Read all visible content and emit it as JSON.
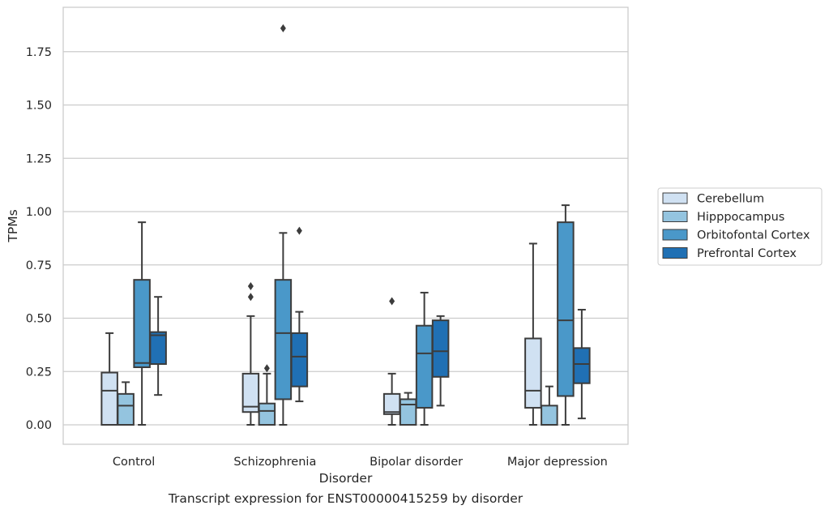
{
  "caption": "Transcript expression for ENST00000415259 by disorder",
  "chart_data": {
    "type": "box",
    "xlabel": "Disorder",
    "ylabel": "TPMs",
    "ylim": [
      -0.09,
      1.97
    ],
    "yticks": [
      0.0,
      0.25,
      0.5,
      0.75,
      1.0,
      1.25,
      1.5,
      1.75
    ],
    "ytick_labels": [
      "0.00",
      "0.25",
      "0.50",
      "0.75",
      "1.00",
      "1.25",
      "1.50",
      "1.75"
    ],
    "grid": "horizontal",
    "legend_position": "right",
    "categories": [
      "Control",
      "Schizophrenia",
      "Bipolar disorder",
      "Major depression"
    ],
    "series": [
      {
        "name": "Cerebellum",
        "color": "#d0e1f2",
        "boxes": [
          {
            "whisker_low": 0.0,
            "q1": 0.0,
            "median": 0.16,
            "q3": 0.245,
            "whisker_high": 0.43,
            "outliers": []
          },
          {
            "whisker_low": 0.0,
            "q1": 0.06,
            "median": 0.085,
            "q3": 0.24,
            "whisker_high": 0.51,
            "outliers": [
              0.6,
              0.65
            ]
          },
          {
            "whisker_low": 0.0,
            "q1": 0.05,
            "median": 0.06,
            "q3": 0.145,
            "whisker_high": 0.24,
            "outliers": [
              0.58
            ]
          },
          {
            "whisker_low": 0.0,
            "q1": 0.08,
            "median": 0.16,
            "q3": 0.405,
            "whisker_high": 0.85,
            "outliers": []
          }
        ]
      },
      {
        "name": "Hipppocampus",
        "color": "#94c4df",
        "boxes": [
          {
            "whisker_low": 0.0,
            "q1": 0.0,
            "median": 0.09,
            "q3": 0.145,
            "whisker_high": 0.2,
            "outliers": []
          },
          {
            "whisker_low": 0.0,
            "q1": 0.0,
            "median": 0.065,
            "q3": 0.1,
            "whisker_high": 0.24,
            "outliers": [
              0.265
            ]
          },
          {
            "whisker_low": 0.0,
            "q1": 0.0,
            "median": 0.095,
            "q3": 0.12,
            "whisker_high": 0.15,
            "outliers": []
          },
          {
            "whisker_low": 0.0,
            "q1": 0.0,
            "median": 0.0,
            "q3": 0.09,
            "whisker_high": 0.18,
            "outliers": []
          }
        ]
      },
      {
        "name": "Orbitofontal Cortex",
        "color": "#4a98c9",
        "boxes": [
          {
            "whisker_low": 0.0,
            "q1": 0.27,
            "median": 0.29,
            "q3": 0.68,
            "whisker_high": 0.95,
            "outliers": []
          },
          {
            "whisker_low": 0.0,
            "q1": 0.12,
            "median": 0.43,
            "q3": 0.68,
            "whisker_high": 0.9,
            "outliers": [
              1.86
            ]
          },
          {
            "whisker_low": 0.0,
            "q1": 0.08,
            "median": 0.335,
            "q3": 0.465,
            "whisker_high": 0.62,
            "outliers": []
          },
          {
            "whisker_low": 0.0,
            "q1": 0.135,
            "median": 0.49,
            "q3": 0.95,
            "whisker_high": 1.03,
            "outliers": []
          }
        ]
      },
      {
        "name": "Prefrontal Cortex",
        "color": "#2070b4",
        "boxes": [
          {
            "whisker_low": 0.14,
            "q1": 0.285,
            "median": 0.42,
            "q3": 0.435,
            "whisker_high": 0.6,
            "outliers": []
          },
          {
            "whisker_low": 0.11,
            "q1": 0.18,
            "median": 0.32,
            "q3": 0.43,
            "whisker_high": 0.53,
            "outliers": [
              0.91
            ]
          },
          {
            "whisker_low": 0.09,
            "q1": 0.225,
            "median": 0.345,
            "q3": 0.49,
            "whisker_high": 0.51,
            "outliers": []
          },
          {
            "whisker_low": 0.03,
            "q1": 0.195,
            "median": 0.285,
            "q3": 0.36,
            "whisker_high": 0.54,
            "outliers": []
          }
        ]
      }
    ]
  }
}
